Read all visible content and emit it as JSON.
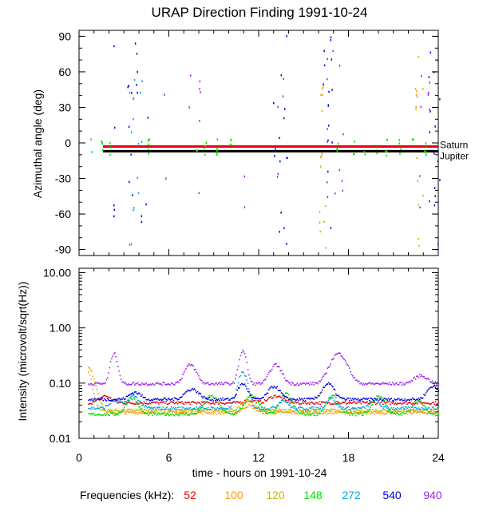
{
  "figure_title": "URAP Direction Finding  1991-10-24",
  "xlabel": "time - hours on 1991-10-24",
  "x_ticks": [
    0,
    6,
    12,
    18,
    24
  ],
  "x_range": [
    0,
    24
  ],
  "legend_label": "Frequencies (kHz):",
  "frequencies": [
    {
      "label": "52",
      "color": "#e8000b"
    },
    {
      "label": "100",
      "color": "#ff9900"
    },
    {
      "label": "120",
      "color": "#c8b400"
    },
    {
      "label": "148",
      "color": "#00e000"
    },
    {
      "label": "272",
      "color": "#00a8e8"
    },
    {
      "label": "540",
      "color": "#0000e0"
    },
    {
      "label": "940",
      "color": "#a020f0"
    }
  ],
  "chart_data": [
    {
      "type": "scatter",
      "title": "Azimuthal angle",
      "ylabel": "Azimuthal angle (deg)",
      "ylim": [
        -95,
        95
      ],
      "y_ticks": [
        -90,
        -60,
        -30,
        0,
        30,
        60,
        90
      ],
      "reference_lines": [
        {
          "name": "Saturn",
          "y": -3,
          "color": "#e8000b"
        },
        {
          "name": "Jupiter",
          "y": -7,
          "color": "#000000"
        }
      ],
      "clusters": [
        {
          "series": "148",
          "t": [
            0.8,
            1.5,
            2.0,
            4.6,
            7.8,
            8.4,
            9.2,
            10.1,
            17.2,
            18.3,
            19.0,
            19.8,
            20.5,
            21.4,
            22.3,
            23.1
          ],
          "y_min": -10,
          "y_max": 5
        },
        {
          "series": "272",
          "t": [
            3.4,
            3.6,
            3.9,
            4.1
          ],
          "y_min": -90,
          "y_max": 55
        },
        {
          "series": "540",
          "t": [
            2.3,
            3.3,
            3.5,
            3.8,
            4.2,
            4.5,
            13.0,
            13.4,
            13.7,
            13.9,
            16.3,
            16.6,
            16.8,
            23.4,
            23.7,
            24.0
          ],
          "y_min": -85,
          "y_max": 92
        },
        {
          "series": "940",
          "t": [
            5.7,
            7.4,
            8.0,
            11.0,
            13.2,
            13.6,
            16.5,
            17.0,
            17.3,
            17.6,
            22.8,
            23.3
          ],
          "y_min": -60,
          "y_max": 85
        },
        {
          "series": "120",
          "t": [
            16.1,
            16.4,
            22.6,
            22.9
          ],
          "y_min": -88,
          "y_max": 90
        },
        {
          "series": "100",
          "t": [
            16.2,
            22.5
          ],
          "y_min": -40,
          "y_max": 60
        }
      ]
    },
    {
      "type": "line",
      "title": "Intensity",
      "ylabel": "Intensity (microvolt/sqrt(Hz))",
      "yscale": "log",
      "ylim": [
        0.01,
        12
      ],
      "y_ticks": [
        0.01,
        0.1,
        1.0,
        10.0
      ],
      "y_tick_labels": [
        "0.01",
        "0.10",
        "1.00",
        "10.00"
      ],
      "series": [
        {
          "name": "52",
          "baseline": 0.045,
          "peaks": [
            [
              1.7,
              0.06,
              0.5
            ],
            [
              11.4,
              0.05,
              0.5
            ],
            [
              13.1,
              0.06,
              0.6
            ]
          ]
        },
        {
          "name": "100",
          "baseline": 0.03,
          "peaks": [
            [
              0.5,
              0.2,
              0.6
            ],
            [
              11.3,
              0.04,
              0.5
            ]
          ]
        },
        {
          "name": "120",
          "baseline": 0.033,
          "peaks": [
            [
              0.3,
              0.22,
              0.5
            ],
            [
              11.2,
              0.05,
              0.5
            ]
          ]
        },
        {
          "name": "148",
          "baseline": 0.028,
          "peaks": [
            [
              3.5,
              0.055,
              0.5
            ],
            [
              8.8,
              0.06,
              0.6
            ],
            [
              11.5,
              0.06,
              0.6
            ],
            [
              13.8,
              0.065,
              0.5
            ],
            [
              16.9,
              0.06,
              0.5
            ],
            [
              20.0,
              0.06,
              0.5
            ],
            [
              22.6,
              0.05,
              0.5
            ]
          ]
        },
        {
          "name": "272",
          "baseline": 0.036,
          "peaks": [
            [
              2.4,
              0.05,
              0.5
            ],
            [
              3.6,
              0.06,
              0.5
            ],
            [
              10.9,
              0.16,
              0.4
            ],
            [
              13.6,
              0.05,
              0.4
            ],
            [
              16.8,
              0.055,
              0.4
            ],
            [
              19.7,
              0.05,
              0.4
            ]
          ]
        },
        {
          "name": "540",
          "baseline": 0.052,
          "peaks": [
            [
              3.7,
              0.07,
              0.5
            ],
            [
              7.5,
              0.08,
              0.6
            ],
            [
              10.9,
              0.1,
              0.4
            ],
            [
              13.0,
              0.09,
              0.5
            ],
            [
              16.6,
              0.1,
              0.5
            ],
            [
              23.6,
              0.09,
              0.5
            ]
          ]
        },
        {
          "name": "940",
          "baseline": 0.1,
          "peaks": [
            [
              2.3,
              0.35,
              0.3
            ],
            [
              7.4,
              0.22,
              0.5
            ],
            [
              10.9,
              0.4,
              0.3
            ],
            [
              13.1,
              0.22,
              0.5
            ],
            [
              17.3,
              0.35,
              0.7
            ],
            [
              22.8,
              0.14,
              0.6
            ]
          ]
        }
      ]
    }
  ]
}
